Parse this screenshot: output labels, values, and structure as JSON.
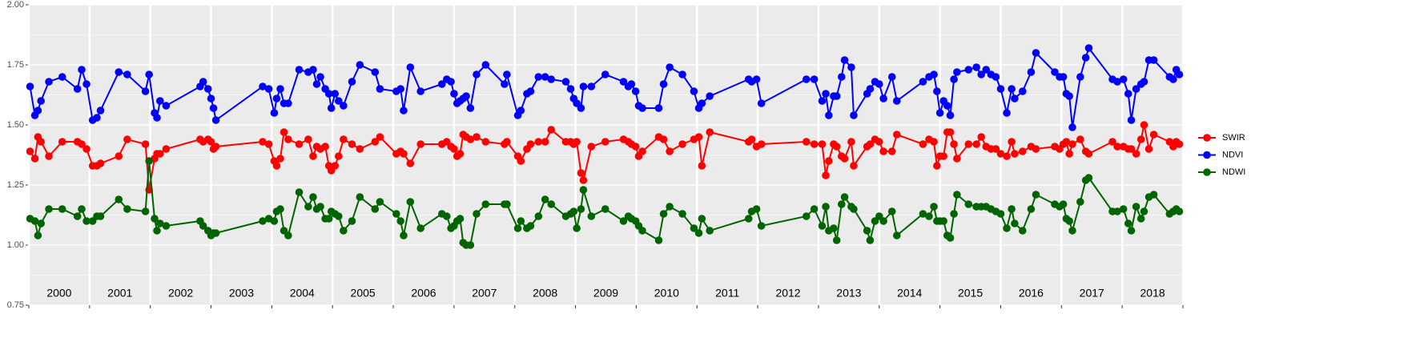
{
  "chart_data": {
    "type": "line",
    "x": [
      2000.02,
      2000.1,
      2000.15,
      2000.2,
      2000.33,
      2000.55,
      2000.8,
      2000.87,
      2000.95,
      2001.05,
      2001.12,
      2001.18,
      2001.48,
      2001.62,
      2001.92,
      2001.98,
      2002.07,
      2002.11,
      2002.16,
      2002.26,
      2002.82,
      2002.87,
      2002.95,
      2003.0,
      2003.04,
      2003.08,
      2003.85,
      2003.95,
      2004.04,
      2004.08,
      2004.14,
      2004.2,
      2004.27,
      2004.45,
      2004.6,
      2004.68,
      2004.74,
      2004.8,
      2004.88,
      2004.94,
      2004.98,
      2005.04,
      2005.1,
      2005.18,
      2005.32,
      2005.45,
      2005.7,
      2005.78,
      2006.05,
      2006.12,
      2006.17,
      2006.28,
      2006.45,
      2006.8,
      2006.88,
      2006.95,
      2007.0,
      2007.05,
      2007.1,
      2007.15,
      2007.2,
      2007.27,
      2007.37,
      2007.52,
      2007.83,
      2007.87,
      2008.05,
      2008.1,
      2008.2,
      2008.26,
      2008.39,
      2008.5,
      2008.6,
      2008.84,
      2008.92,
      2008.97,
      2009.02,
      2009.09,
      2009.13,
      2009.26,
      2009.49,
      2009.79,
      2009.87,
      2009.92,
      2009.99,
      2010.04,
      2010.1,
      2010.37,
      2010.45,
      2010.55,
      2010.76,
      2010.95,
      2011.03,
      2011.08,
      2011.21,
      2011.85,
      2011.9,
      2011.98,
      2012.06,
      2012.8,
      2012.93,
      2013.06,
      2013.12,
      2013.17,
      2013.25,
      2013.3,
      2013.38,
      2013.43,
      2013.54,
      2013.58,
      2013.8,
      2013.85,
      2013.93,
      2014.0,
      2014.07,
      2014.21,
      2014.29,
      2014.72,
      2014.82,
      2014.9,
      2014.95,
      2015.0,
      2015.06,
      2015.12,
      2015.17,
      2015.23,
      2015.28,
      2015.47,
      2015.6,
      2015.68,
      2015.76,
      2015.84,
      2015.92,
      2016.0,
      2016.1,
      2016.18,
      2016.23,
      2016.36,
      2016.5,
      2016.58,
      2016.89,
      2016.97,
      2017.03,
      2017.08,
      2017.13,
      2017.18,
      2017.31,
      2017.4,
      2017.45,
      2017.84,
      2017.92,
      2018.02,
      2018.1,
      2018.15,
      2018.23,
      2018.31,
      2018.36,
      2018.44,
      2018.52,
      2018.78,
      2018.84,
      2018.89,
      2018.94
    ],
    "series": [
      {
        "name": "SWIR",
        "color": "#ff0000",
        "values": [
          1.39,
          1.36,
          1.45,
          1.43,
          1.37,
          1.43,
          1.43,
          1.42,
          1.4,
          1.33,
          1.33,
          1.34,
          1.37,
          1.44,
          1.42,
          1.23,
          1.36,
          1.38,
          1.38,
          1.4,
          1.44,
          1.43,
          1.44,
          1.43,
          1.4,
          1.41,
          1.43,
          1.42,
          1.35,
          1.33,
          1.36,
          1.47,
          1.44,
          1.42,
          1.44,
          1.37,
          1.41,
          1.4,
          1.41,
          1.33,
          1.31,
          1.33,
          1.37,
          1.44,
          1.42,
          1.4,
          1.43,
          1.45,
          1.38,
          1.39,
          1.38,
          1.34,
          1.42,
          1.42,
          1.43,
          1.41,
          1.4,
          1.37,
          1.38,
          1.46,
          1.45,
          1.44,
          1.45,
          1.43,
          1.42,
          1.43,
          1.37,
          1.35,
          1.4,
          1.42,
          1.43,
          1.43,
          1.48,
          1.43,
          1.43,
          1.42,
          1.43,
          1.3,
          1.27,
          1.41,
          1.43,
          1.44,
          1.43,
          1.42,
          1.41,
          1.37,
          1.39,
          1.45,
          1.44,
          1.39,
          1.42,
          1.44,
          1.45,
          1.33,
          1.47,
          1.43,
          1.44,
          1.41,
          1.42,
          1.43,
          1.42,
          1.42,
          1.29,
          1.35,
          1.42,
          1.41,
          1.37,
          1.36,
          1.43,
          1.33,
          1.41,
          1.42,
          1.44,
          1.43,
          1.39,
          1.39,
          1.46,
          1.42,
          1.44,
          1.43,
          1.33,
          1.37,
          1.37,
          1.47,
          1.47,
          1.42,
          1.36,
          1.42,
          1.42,
          1.45,
          1.41,
          1.4,
          1.4,
          1.38,
          1.37,
          1.43,
          1.38,
          1.39,
          1.41,
          1.4,
          1.41,
          1.4,
          1.42,
          1.43,
          1.38,
          1.42,
          1.44,
          1.39,
          1.38,
          1.43,
          1.41,
          1.41,
          1.4,
          1.4,
          1.38,
          1.44,
          1.5,
          1.4,
          1.46,
          1.43,
          1.41,
          1.43,
          1.42
        ]
      },
      {
        "name": "NDVI",
        "color": "#0000ff",
        "values": [
          1.66,
          1.54,
          1.56,
          1.6,
          1.68,
          1.7,
          1.65,
          1.73,
          1.67,
          1.52,
          1.53,
          1.56,
          1.72,
          1.71,
          1.64,
          1.71,
          1.55,
          1.53,
          1.6,
          1.58,
          1.66,
          1.68,
          1.65,
          1.61,
          1.57,
          1.52,
          1.66,
          1.65,
          1.55,
          1.61,
          1.65,
          1.59,
          1.59,
          1.73,
          1.72,
          1.73,
          1.67,
          1.7,
          1.65,
          1.63,
          1.57,
          1.63,
          1.6,
          1.58,
          1.68,
          1.75,
          1.72,
          1.65,
          1.64,
          1.65,
          1.56,
          1.74,
          1.64,
          1.67,
          1.69,
          1.68,
          1.63,
          1.59,
          1.6,
          1.61,
          1.62,
          1.57,
          1.71,
          1.75,
          1.67,
          1.71,
          1.54,
          1.56,
          1.63,
          1.64,
          1.7,
          1.7,
          1.69,
          1.68,
          1.65,
          1.61,
          1.59,
          1.57,
          1.66,
          1.66,
          1.71,
          1.68,
          1.66,
          1.67,
          1.64,
          1.58,
          1.57,
          1.57,
          1.67,
          1.74,
          1.71,
          1.64,
          1.57,
          1.59,
          1.62,
          1.69,
          1.68,
          1.69,
          1.59,
          1.69,
          1.69,
          1.6,
          1.63,
          1.54,
          1.62,
          1.62,
          1.7,
          1.77,
          1.74,
          1.54,
          1.63,
          1.65,
          1.68,
          1.67,
          1.61,
          1.7,
          1.6,
          1.68,
          1.7,
          1.71,
          1.64,
          1.55,
          1.6,
          1.58,
          1.54,
          1.69,
          1.72,
          1.73,
          1.74,
          1.71,
          1.73,
          1.71,
          1.7,
          1.65,
          1.55,
          1.65,
          1.61,
          1.64,
          1.72,
          1.8,
          1.72,
          1.7,
          1.7,
          1.63,
          1.62,
          1.49,
          1.7,
          1.78,
          1.82,
          1.69,
          1.68,
          1.69,
          1.63,
          1.52,
          1.65,
          1.67,
          1.68,
          1.77,
          1.77,
          1.7,
          1.69,
          1.73,
          1.71
        ]
      },
      {
        "name": "NDWI",
        "color": "#006400",
        "values": [
          1.11,
          1.1,
          1.04,
          1.09,
          1.15,
          1.15,
          1.12,
          1.15,
          1.1,
          1.1,
          1.12,
          1.12,
          1.19,
          1.15,
          1.14,
          1.35,
          1.11,
          1.06,
          1.09,
          1.08,
          1.1,
          1.08,
          1.06,
          1.04,
          1.05,
          1.05,
          1.1,
          1.11,
          1.1,
          1.14,
          1.15,
          1.06,
          1.04,
          1.22,
          1.16,
          1.2,
          1.15,
          1.16,
          1.11,
          1.11,
          1.14,
          1.13,
          1.12,
          1.06,
          1.1,
          1.2,
          1.15,
          1.18,
          1.13,
          1.1,
          1.04,
          1.18,
          1.07,
          1.13,
          1.12,
          1.07,
          1.08,
          1.1,
          1.11,
          1.01,
          1.0,
          1.0,
          1.13,
          1.17,
          1.17,
          1.17,
          1.07,
          1.1,
          1.07,
          1.08,
          1.12,
          1.19,
          1.17,
          1.12,
          1.13,
          1.14,
          1.07,
          1.15,
          1.23,
          1.12,
          1.15,
          1.1,
          1.12,
          1.11,
          1.1,
          1.08,
          1.06,
          1.02,
          1.13,
          1.16,
          1.13,
          1.07,
          1.05,
          1.11,
          1.06,
          1.11,
          1.14,
          1.15,
          1.08,
          1.12,
          1.15,
          1.08,
          1.16,
          1.06,
          1.07,
          1.02,
          1.17,
          1.2,
          1.16,
          1.15,
          1.06,
          1.02,
          1.1,
          1.12,
          1.1,
          1.14,
          1.04,
          1.13,
          1.12,
          1.16,
          1.1,
          1.1,
          1.1,
          1.04,
          1.03,
          1.13,
          1.21,
          1.17,
          1.16,
          1.16,
          1.16,
          1.15,
          1.14,
          1.13,
          1.07,
          1.15,
          1.09,
          1.06,
          1.15,
          1.21,
          1.17,
          1.16,
          1.17,
          1.11,
          1.1,
          1.06,
          1.18,
          1.27,
          1.28,
          1.14,
          1.14,
          1.15,
          1.09,
          1.06,
          1.16,
          1.11,
          1.14,
          1.2,
          1.21,
          1.13,
          1.14,
          1.15,
          1.14
        ]
      }
    ],
    "xlim": [
      2000,
      2019
    ],
    "xticks": [
      2000,
      2001,
      2002,
      2003,
      2004,
      2005,
      2006,
      2007,
      2008,
      2009,
      2010,
      2011,
      2012,
      2013,
      2014,
      2015,
      2016,
      2017,
      2018,
      2019
    ],
    "year_labels": [
      2000,
      2001,
      2002,
      2003,
      2004,
      2005,
      2006,
      2007,
      2008,
      2009,
      2010,
      2011,
      2012,
      2013,
      2014,
      2015,
      2016,
      2017,
      2018
    ],
    "ylim": [
      0.75,
      2.0
    ],
    "yticks": [
      {
        "value": 0.75,
        "label": "0.75"
      },
      {
        "value": 1.0,
        "label": "1.00"
      },
      {
        "value": 1.25,
        "label": "1.25"
      },
      {
        "value": 1.5,
        "label": "1.50"
      },
      {
        "value": 1.75,
        "label": "1.75"
      },
      {
        "value": 2.0,
        "label": "2.00"
      }
    ],
    "grid": true,
    "legend": "right"
  }
}
